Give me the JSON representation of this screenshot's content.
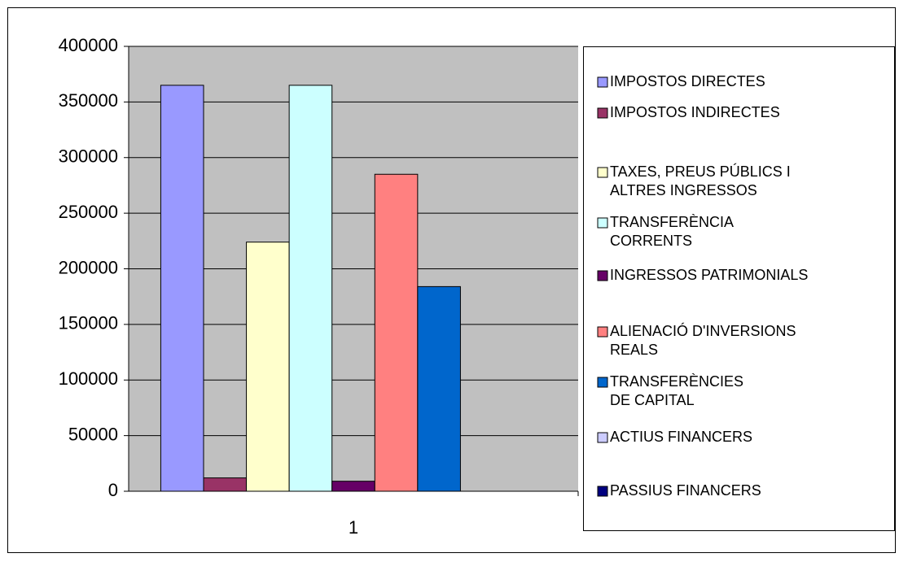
{
  "chart_data": {
    "type": "bar",
    "categories": [
      "1"
    ],
    "series": [
      {
        "name": "IMPOSTOS DIRECTES",
        "color": "#9999ff",
        "values": [
          365000
        ]
      },
      {
        "name": "IMPOSTOS INDIRECTES",
        "color": "#993366",
        "values": [
          12000
        ]
      },
      {
        "name": "TAXES, PREUS PÚBLICS I ALTRES INGRESSOS",
        "color": "#ffffcc",
        "values": [
          224000
        ]
      },
      {
        "name": "TRANSFERÈNCIA CORRENTS",
        "color": "#ccffff",
        "values": [
          365000
        ]
      },
      {
        "name": "INGRESSOS PATRIMONIALS",
        "color": "#660066",
        "values": [
          9000
        ]
      },
      {
        "name": "ALIENACIÓ D'INVERSIONS REALS",
        "color": "#ff8080",
        "values": [
          285000
        ]
      },
      {
        "name": "TRANSFERÈNCIES DE CAPITAL",
        "color": "#0066cc",
        "values": [
          184000
        ]
      },
      {
        "name": "ACTIUS FINANCERS",
        "color": "#ccccff",
        "values": [
          0
        ]
      },
      {
        "name": "PASSIUS FINANCERS",
        "color": "#000080",
        "values": [
          0
        ]
      }
    ],
    "ylim": [
      0,
      400000
    ],
    "yticks": [
      0,
      50000,
      100000,
      150000,
      200000,
      250000,
      300000,
      350000,
      400000
    ],
    "grid": true,
    "legend": "right"
  }
}
